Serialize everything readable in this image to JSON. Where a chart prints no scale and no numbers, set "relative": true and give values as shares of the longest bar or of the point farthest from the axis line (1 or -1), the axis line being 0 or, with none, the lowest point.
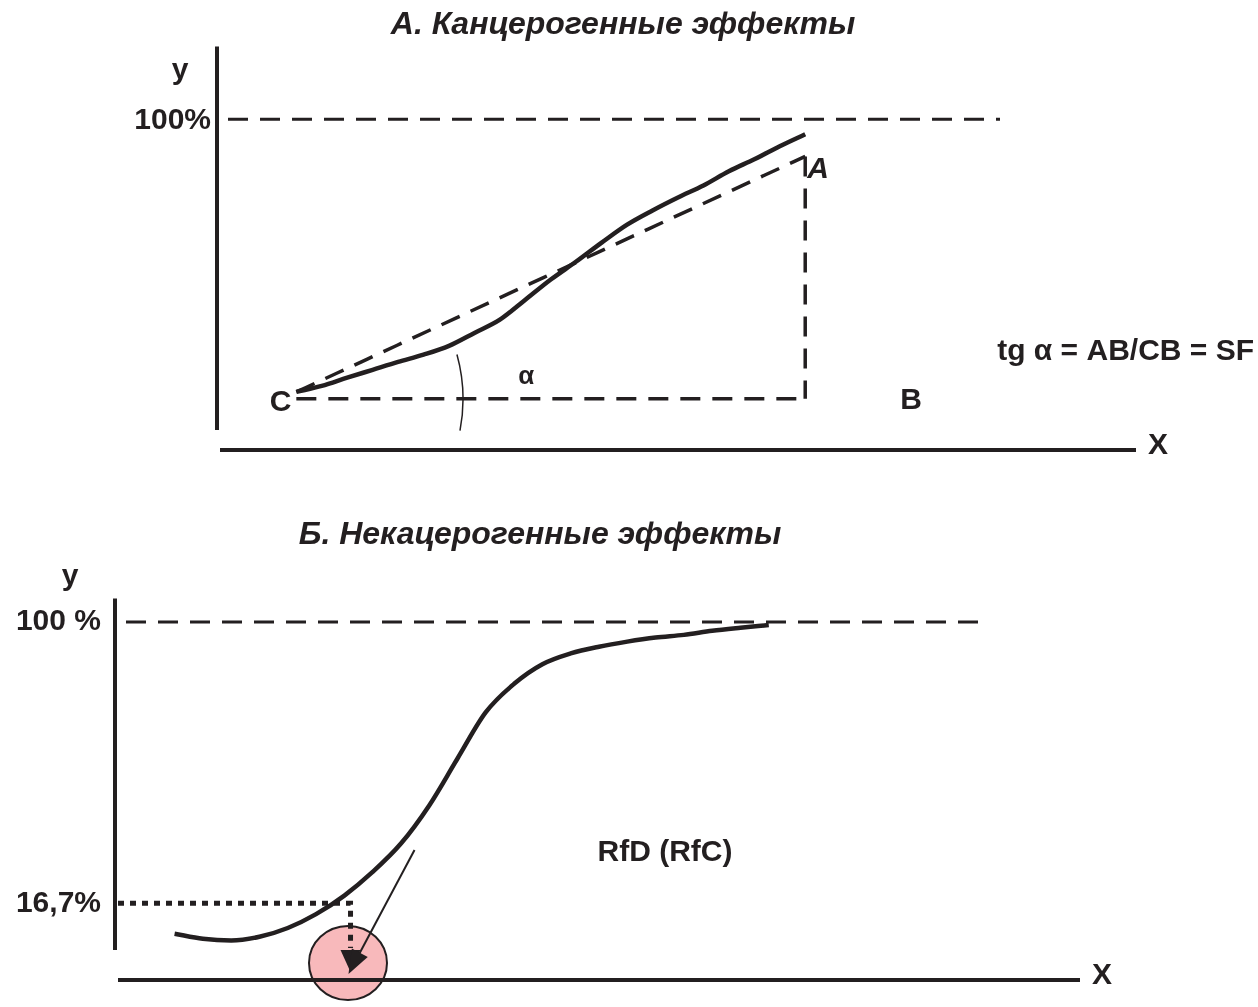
{
  "chart_data": [
    {
      "type": "line",
      "title": "А. Канцерогенные эффекты",
      "ylabel": "y",
      "xlabel": "X",
      "relative": true,
      "grid": false,
      "legend": false,
      "categories": [
        null,
        null,
        null,
        null,
        null,
        null,
        null,
        null,
        null,
        null,
        null,
        null,
        null,
        null,
        null,
        null,
        null,
        null,
        null,
        null,
        null,
        null,
        null,
        null,
        null,
        null,
        null,
        null,
        null,
        null,
        null,
        null,
        null,
        null,
        null,
        null,
        null
      ],
      "series": [
        {
          "color": "#231f20",
          "line_style": "solid",
          "values": [
            null,
            null,
            null,
            0.184,
            0.203,
            0.229,
            0.254,
            0.279,
            0.302,
            0.33,
            0.371,
            0.413,
            0.476,
            0.54,
            0.597,
            0.657,
            0.714,
            0.759,
            0.8,
            0.838,
            0.883,
            0.921,
            0.962,
            1,
            null,
            null,
            null,
            null,
            null,
            null,
            null,
            null,
            null,
            null,
            null,
            null,
            null
          ]
        },
        {
          "color": "#231f20",
          "line_style": "dashed",
          "values": [
            null,
            null,
            null,
            0.184,
            null,
            null,
            null,
            null,
            null,
            null,
            null,
            null,
            null,
            null,
            null,
            null,
            null,
            null,
            null,
            null,
            null,
            null,
            null,
            0.93,
            null,
            null,
            null,
            null,
            null,
            null,
            null,
            null,
            null,
            null,
            null,
            null,
            null
          ]
        },
        {
          "color": "#231f20",
          "line_style": "dashed",
          "values": [
            null,
            null,
            null,
            0.162,
            null,
            null,
            null,
            null,
            null,
            null,
            null,
            null,
            null,
            null,
            null,
            null,
            null,
            null,
            null,
            null,
            null,
            null,
            null,
            0.162,
            null,
            null,
            null,
            null,
            null,
            null,
            null,
            null,
            null,
            null,
            null,
            null,
            null
          ]
        }
      ],
      "ref_lines": [
        {
          "axis": "y",
          "value": 1.048,
          "line_style": "dashed"
        }
      ],
      "annotations": [
        "A",
        "B",
        "C",
        "α",
        "tg α = AB/CB = SF",
        "100%"
      ]
    },
    {
      "type": "line",
      "title": "Б. Некацерогенные эффекты",
      "ylabel": "y",
      "xlabel": "X",
      "grid": false,
      "legend": false,
      "categories": [
        null,
        null,
        null,
        null,
        null,
        null,
        null,
        null,
        null,
        null,
        null,
        null,
        null,
        null,
        null,
        null,
        null,
        null,
        null,
        null,
        null,
        null,
        null,
        null,
        null,
        null,
        null,
        null,
        null,
        null,
        null,
        null,
        null,
        null,
        null
      ],
      "series": [
        {
          "color": "#231f20",
          "line_style": "solid",
          "values": [
            null,
            null,
            7.7,
            6.2,
            5.7,
            6.8,
            9.4,
            13.5,
            19.0,
            26.0,
            34.4,
            45.7,
            59.6,
            73.3,
            81.7,
            87.5,
            90.7,
            92.7,
            94.2,
            95.4,
            96.2,
            97.4,
            98.3,
            99.1,
            null,
            null,
            null,
            null,
            null,
            null,
            null,
            null,
            null,
            null,
            null
          ]
        }
      ],
      "ylim": [
        -6,
        107
      ],
      "yticks": [
        {
          "value": 100,
          "label": "100 %"
        },
        {
          "value": 16.7,
          "label": "16,7%"
        }
      ],
      "ref_lines": [
        {
          "axis": "y",
          "value": 100,
          "line_style": "dashed"
        },
        {
          "axis": "y",
          "value": 16.7,
          "line_style": "dotted"
        }
      ],
      "annotations": [
        "RfD (RfC)"
      ]
    }
  ]
}
